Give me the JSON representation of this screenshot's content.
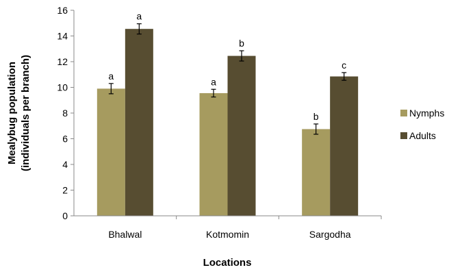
{
  "chart_data": {
    "type": "bar",
    "categories": [
      "Bhalwal",
      "Kotmomin",
      "Sargodha"
    ],
    "series": [
      {
        "name": "Nymphs",
        "color": "#a69b5f",
        "values": [
          9.9,
          9.55,
          6.75
        ],
        "errors": [
          0.4,
          0.3,
          0.4
        ],
        "labels": [
          "a",
          "a",
          "b"
        ]
      },
      {
        "name": "Adults",
        "color": "#574d31",
        "values": [
          14.55,
          12.45,
          10.85
        ],
        "errors": [
          0.4,
          0.4,
          0.3
        ],
        "labels": [
          "a",
          "b",
          "c"
        ]
      }
    ],
    "yticks": [
      "0",
      "2",
      "4",
      "6",
      "8",
      "10",
      "12",
      "14",
      "16"
    ],
    "ylim": [
      0,
      16
    ],
    "xlabel": "Locations",
    "ylabel_line1": "Mealybug population",
    "ylabel_line2": "(individuals per branch)",
    "legend_position": "right",
    "grid": false
  }
}
